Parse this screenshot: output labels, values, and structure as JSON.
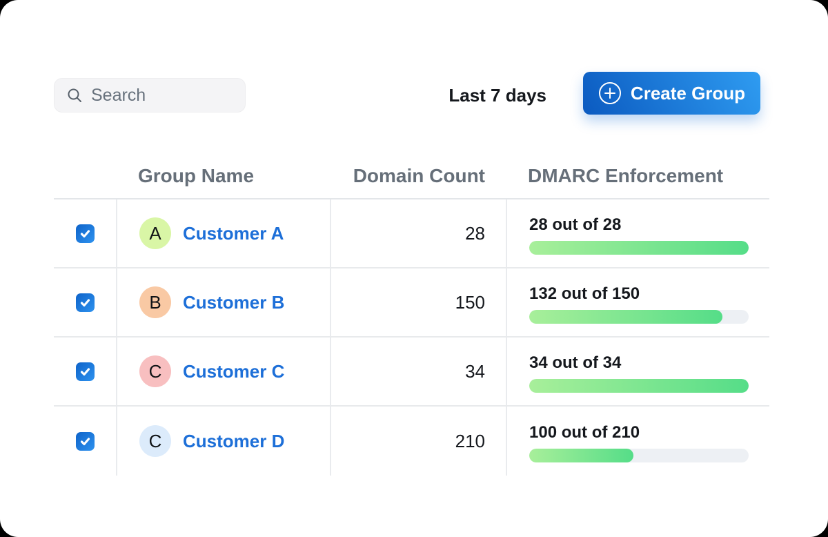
{
  "toolbar": {
    "search_placeholder": "Search",
    "date_range": "Last 7 days",
    "create_group_label": "Create Group"
  },
  "icons": {
    "search": "magnifier",
    "create_group": "plus-circle",
    "checkbox": "checkmark"
  },
  "table": {
    "columns": {
      "group_name": "Group Name",
      "domain_count": "Domain Count",
      "dmarc": "DMARC Enforcement"
    },
    "rows": [
      {
        "checked": true,
        "avatar_letter": "A",
        "avatar_color": "#d9f6a6",
        "name": "Customer A",
        "domain_count": "28",
        "dmarc_label": "28 out of 28",
        "dmarc_percent": 100
      },
      {
        "checked": true,
        "avatar_letter": "B",
        "avatar_color": "#f9c9a4",
        "name": "Customer B",
        "domain_count": "150",
        "dmarc_label": "132 out of 150",
        "dmarc_percent": 88
      },
      {
        "checked": true,
        "avatar_letter": "C",
        "avatar_color": "#f8bfc0",
        "name": "Customer C",
        "domain_count": "34",
        "dmarc_label": "34 out of 34",
        "dmarc_percent": 100
      },
      {
        "checked": true,
        "avatar_letter": "C",
        "avatar_color": "#dcebfb",
        "name": "Customer D",
        "domain_count": "210",
        "dmarc_label": "100 out of 210",
        "dmarc_percent": 47.6
      }
    ]
  },
  "colors": {
    "accent_blue": "#1d6fd8",
    "button_gradient_start": "#0b5ac0",
    "button_gradient_end": "#2f9cf1",
    "checkbox_gradient_start": "#0e63c9",
    "checkbox_gradient_end": "#2e92ef",
    "bar_gradient_start": "#a8ef9a",
    "bar_gradient_end": "#55dd88",
    "bar_track": "#edf0f4",
    "header_text": "#666f79",
    "body_text": "#15181d",
    "border": "#e8eaec",
    "search_bg": "#f4f4f6"
  }
}
